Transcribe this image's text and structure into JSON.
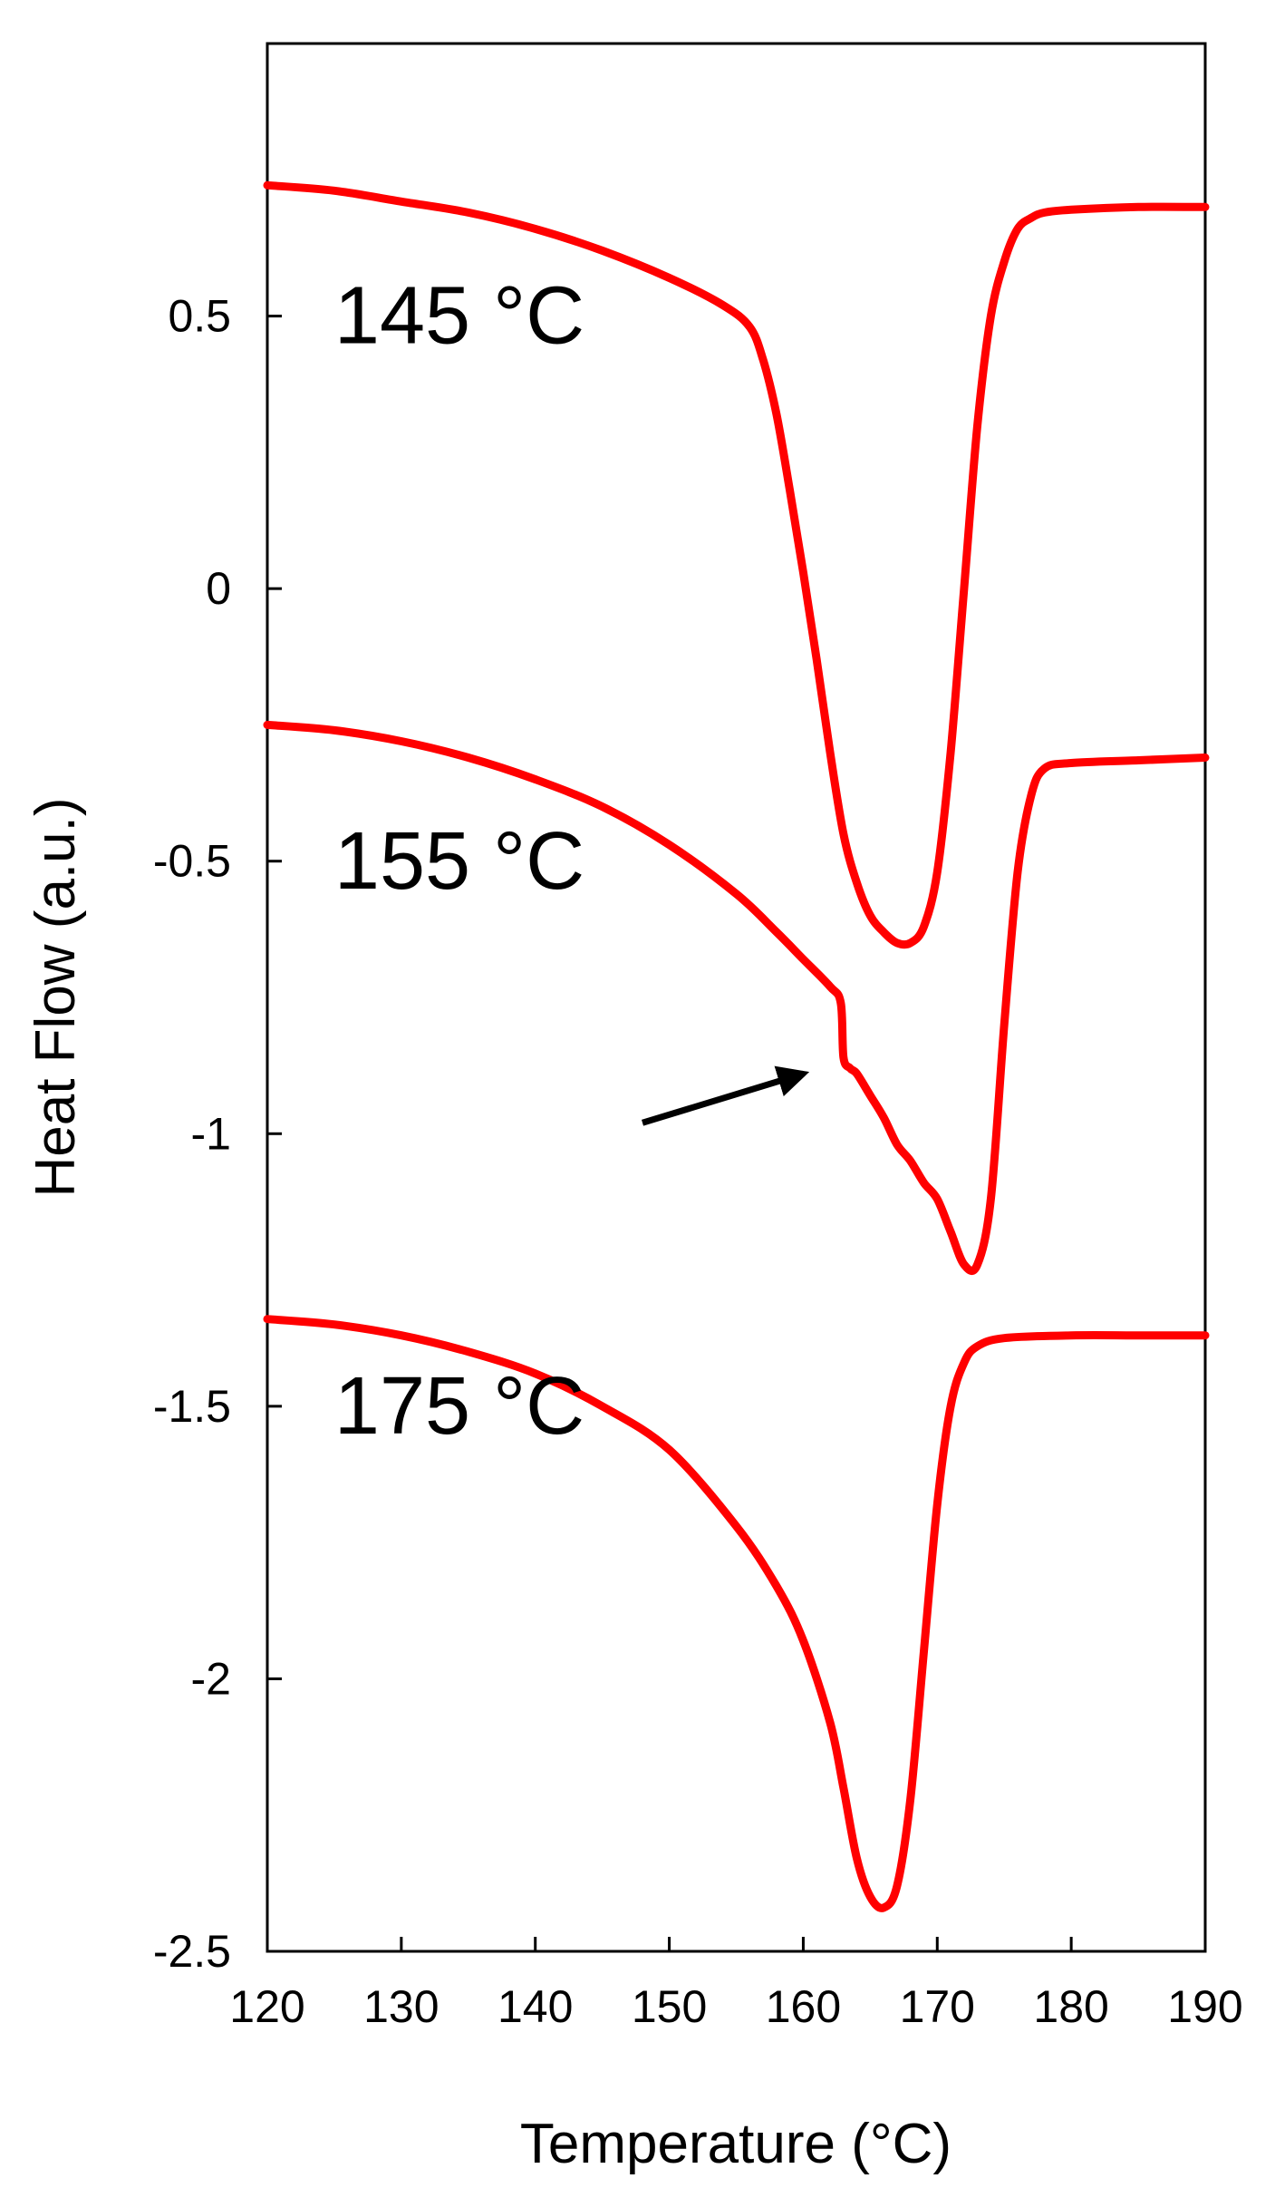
{
  "chart_data": {
    "type": "line",
    "xlabel": "Temperature (°C)",
    "ylabel": "Heat Flow (a.u.)",
    "xlim": [
      120,
      190
    ],
    "ylim": [
      -2.5,
      1.0
    ],
    "x_ticks": [
      120,
      130,
      140,
      150,
      160,
      170,
      180,
      190
    ],
    "x_tick_labels": [
      "120",
      "130",
      "140",
      "150",
      "160",
      "170",
      "180",
      "190"
    ],
    "y_ticks": [
      0.5,
      0,
      -0.5,
      -1,
      -1.5,
      -2,
      -2.5
    ],
    "y_tick_labels": [
      "0.5",
      "0",
      "-0.5",
      "-1",
      "-1.5",
      "-2",
      "-2.5"
    ],
    "grid": false,
    "line_color": "#ff0000",
    "series": [
      {
        "label_text": "145 °C",
        "label_at": [
          125,
          0.45
        ],
        "x": [
          120,
          125,
          130,
          135,
          140,
          145,
          150,
          154,
          156,
          157,
          158,
          159,
          160,
          161,
          162,
          163,
          164,
          165,
          166,
          167,
          168,
          169,
          170,
          171,
          172,
          173,
          174,
          175,
          176,
          177,
          178,
          180,
          185,
          190
        ],
        "y": [
          0.74,
          0.73,
          0.71,
          0.69,
          0.66,
          0.62,
          0.57,
          0.52,
          0.48,
          0.42,
          0.32,
          0.18,
          0.03,
          -0.13,
          -0.3,
          -0.45,
          -0.54,
          -0.6,
          -0.63,
          -0.65,
          -0.65,
          -0.62,
          -0.52,
          -0.3,
          0.0,
          0.3,
          0.5,
          0.6,
          0.66,
          0.68,
          0.69,
          0.695,
          0.7,
          0.7
        ]
      },
      {
        "label_text": "155 °C",
        "label_at": [
          125,
          -0.55
        ],
        "x": [
          120,
          125,
          130,
          135,
          140,
          145,
          150,
          155,
          158,
          160,
          162,
          162.8,
          163,
          163.5,
          164,
          165,
          166,
          167,
          168,
          169,
          170,
          171,
          172,
          173,
          174,
          175,
          176,
          177,
          178,
          180,
          185,
          190
        ],
        "y": [
          -0.25,
          -0.26,
          -0.28,
          -0.31,
          -0.35,
          -0.4,
          -0.47,
          -0.56,
          -0.63,
          -0.68,
          -0.73,
          -0.76,
          -0.86,
          -0.88,
          -0.89,
          -0.93,
          -0.97,
          -1.02,
          -1.05,
          -1.09,
          -1.12,
          -1.18,
          -1.24,
          -1.24,
          -1.12,
          -0.8,
          -0.52,
          -0.38,
          -0.33,
          -0.32,
          -0.315,
          -0.31
        ]
      },
      {
        "label_text": "175 °C",
        "label_at": [
          125,
          -1.55
        ],
        "x": [
          120,
          125,
          130,
          135,
          140,
          145,
          150,
          155,
          158,
          160,
          162,
          163,
          164,
          165,
          166,
          167,
          168,
          169,
          170,
          171,
          172,
          173,
          175,
          180,
          185,
          190
        ],
        "y": [
          -1.34,
          -1.35,
          -1.37,
          -1.4,
          -1.44,
          -1.5,
          -1.58,
          -1.72,
          -1.83,
          -1.93,
          -2.08,
          -2.2,
          -2.33,
          -2.4,
          -2.42,
          -2.38,
          -2.22,
          -1.95,
          -1.68,
          -1.5,
          -1.42,
          -1.39,
          -1.375,
          -1.37,
          -1.37,
          -1.37
        ]
      }
    ],
    "annotations": [
      {
        "type": "arrow",
        "from": [
          148,
          -0.98
        ],
        "to": [
          160,
          -0.89
        ],
        "color": "#000000"
      }
    ]
  }
}
